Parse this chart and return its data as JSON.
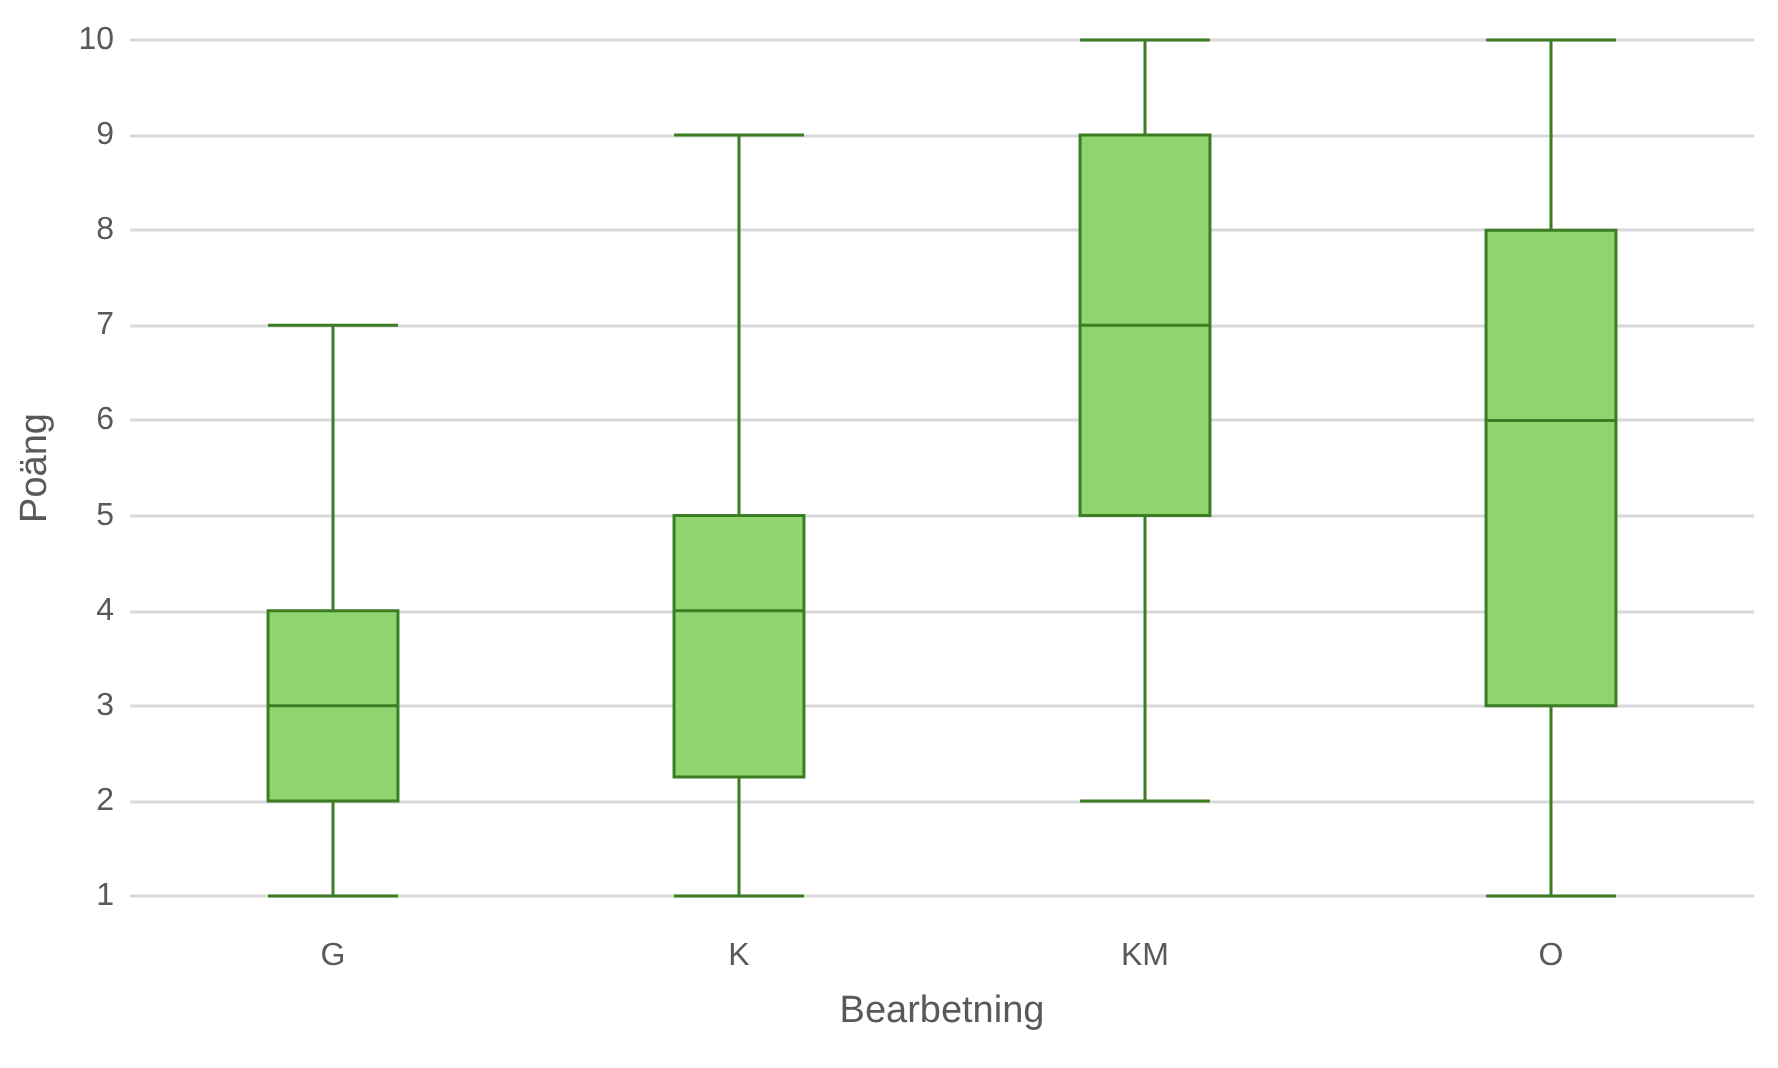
{
  "chart_data": {
    "type": "box",
    "xlabel": "Bearbetning",
    "ylabel": "Poäng",
    "categories": [
      "G",
      "K",
      "KM",
      "O"
    ],
    "boxes": [
      {
        "low": 1,
        "q1": 2,
        "median": 3,
        "q3": 4,
        "high": 7
      },
      {
        "low": 1,
        "q1": 2.25,
        "median": 4,
        "q3": 5,
        "high": 9
      },
      {
        "low": 2,
        "q1": 5,
        "median": 7,
        "q3": 9,
        "high": 10
      },
      {
        "low": 1,
        "q1": 3,
        "median": 6,
        "q3": 8,
        "high": 10
      }
    ],
    "color": "#8fd46f",
    "ylim": [
      1,
      10
    ],
    "yticks": [
      1,
      2,
      3,
      4,
      5,
      6,
      7,
      8,
      9,
      10
    ],
    "grid": "y"
  }
}
